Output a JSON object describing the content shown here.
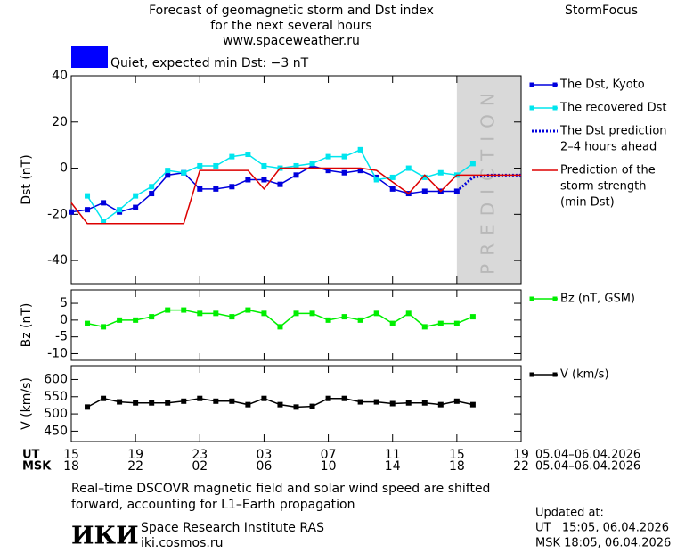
{
  "header": {
    "title": [
      "Forecast of geomagnetic storm and Dst index",
      "for the next several hours",
      "www.spaceweather.ru"
    ],
    "brand": "StormFocus",
    "status": "Quiet, expected min Dst: −3 nT",
    "status_color": "#0000ff"
  },
  "chart_data": [
    {
      "type": "line",
      "ylabel": "Dst (nT)",
      "xlim": [
        0,
        28
      ],
      "ylim": [
        -50,
        40
      ],
      "yticks": [
        40,
        20,
        0,
        -20,
        -40
      ],
      "prediction_zone": {
        "xlim": [
          24,
          28
        ],
        "label": "PREDICTION",
        "color": "#d9d9d9"
      },
      "series": [
        {
          "name": [
            "The Dst, Kyoto"
          ],
          "color": "#0000dd",
          "marker": "square",
          "style": "solid",
          "x": [
            0,
            1,
            2,
            3,
            4,
            5,
            6,
            7,
            8,
            9,
            10,
            11,
            12,
            13,
            14,
            15,
            16,
            17,
            18,
            19,
            20,
            21,
            22,
            23,
            24
          ],
          "values": [
            -19,
            -18,
            -15,
            -19,
            -17,
            -11,
            -3,
            -2,
            -9,
            -9,
            -8,
            -5,
            -5,
            -7,
            -3,
            1,
            -1,
            -2,
            -1,
            -4,
            -9,
            -11,
            -10,
            -10,
            -10
          ]
        },
        {
          "name": [
            "The recovered Dst"
          ],
          "color": "#00e5ee",
          "marker": "square",
          "style": "solid",
          "x": [
            1,
            2,
            3,
            4,
            5,
            6,
            7,
            8,
            9,
            10,
            11,
            12,
            13,
            14,
            15,
            16,
            17,
            18,
            19,
            20,
            21,
            22,
            23,
            24,
            25
          ],
          "values": [
            -12,
            -23,
            -18,
            -12,
            -8,
            -1,
            -2,
            1,
            1,
            5,
            6,
            1,
            0,
            1,
            2,
            5,
            5,
            8,
            -5,
            -4,
            0,
            -4,
            -2,
            -3,
            2
          ]
        },
        {
          "name": [
            "The Dst prediction",
            "2–4 hours ahead"
          ],
          "color": "#0000dd",
          "marker": "none",
          "style": "dotted",
          "x": [
            24,
            25,
            26,
            27,
            28
          ],
          "values": [
            -10,
            -4,
            -3,
            -3,
            -3
          ]
        },
        {
          "name": [
            "Prediction of the",
            "storm strength",
            "(min Dst)"
          ],
          "color": "#dd0000",
          "marker": "none",
          "style": "solid",
          "x": [
            0,
            1,
            7,
            8,
            11,
            12,
            13,
            18,
            19,
            21,
            22,
            23,
            24,
            28
          ],
          "values": [
            -15,
            -24,
            -24,
            -1,
            -1,
            -9,
            0,
            0,
            -1,
            -11,
            -3,
            -10,
            -3,
            -3
          ]
        }
      ]
    },
    {
      "type": "line",
      "ylabel": "Bz (nT)",
      "xlim": [
        0,
        28
      ],
      "ylim": [
        -12,
        9
      ],
      "yticks": [
        5,
        0,
        -5,
        -10
      ],
      "series": [
        {
          "name": [
            "Bz (nT, GSM)"
          ],
          "color": "#00ee00",
          "marker": "square",
          "style": "solid",
          "x": [
            1,
            2,
            3,
            4,
            5,
            6,
            7,
            8,
            9,
            10,
            11,
            12,
            13,
            14,
            15,
            16,
            17,
            18,
            19,
            20,
            21,
            22,
            23,
            24,
            25
          ],
          "values": [
            -1,
            -2,
            0,
            0,
            1,
            3,
            3,
            2,
            2,
            1,
            3,
            2,
            -2,
            2,
            2,
            0,
            1,
            0,
            2,
            -1,
            2,
            -2,
            -1,
            -1,
            1
          ]
        }
      ]
    },
    {
      "type": "line",
      "ylabel": "V (km/s)",
      "xlim": [
        0,
        28
      ],
      "ylim": [
        420,
        640
      ],
      "yticks": [
        600,
        550,
        500,
        450
      ],
      "xticks": [
        {
          "value": 0,
          "label": "15"
        },
        {
          "value": 4,
          "label": "19"
        },
        {
          "value": 8,
          "label": "23"
        },
        {
          "value": 12,
          "label": "03"
        },
        {
          "value": 16,
          "label": "07"
        },
        {
          "value": 20,
          "label": "11"
        },
        {
          "value": 24,
          "label": "15"
        },
        {
          "value": 28,
          "label": "19"
        }
      ],
      "xticks_msk": [
        {
          "value": 0,
          "label": "18"
        },
        {
          "value": 4,
          "label": "22"
        },
        {
          "value": 8,
          "label": "02"
        },
        {
          "value": 12,
          "label": "06"
        },
        {
          "value": 16,
          "label": "10"
        },
        {
          "value": 20,
          "label": "14"
        },
        {
          "value": 24,
          "label": "18"
        },
        {
          "value": 28,
          "label": "22"
        }
      ],
      "xlabel_rows": [
        "UT",
        "MSK"
      ],
      "date_range": "05.04–06.04.2026",
      "series": [
        {
          "name": [
            "V (km/s)"
          ],
          "color": "#000000",
          "marker": "square",
          "style": "solid",
          "x": [
            1,
            2,
            3,
            4,
            5,
            6,
            7,
            8,
            9,
            10,
            11,
            12,
            13,
            14,
            15,
            16,
            17,
            18,
            19,
            20,
            21,
            22,
            23,
            24,
            25
          ],
          "values": [
            520,
            545,
            535,
            532,
            532,
            532,
            537,
            545,
            537,
            537,
            527,
            545,
            527,
            520,
            522,
            545,
            545,
            535,
            535,
            530,
            532,
            532,
            527,
            537,
            527
          ]
        }
      ]
    }
  ],
  "footer": {
    "note": [
      "Real–time DSCOVR magnetic field and solar wind speed are shifted",
      "forward, accounting for L1–Earth propagation"
    ],
    "logo": "ИКИ",
    "institute": "Space Research Institute RAS",
    "site": "iki.cosmos.ru",
    "updated": "Updated at:",
    "ut_time": "UT   15:05, 06.04.2026",
    "msk_time": "MSK 18:05, 06.04.2026"
  }
}
